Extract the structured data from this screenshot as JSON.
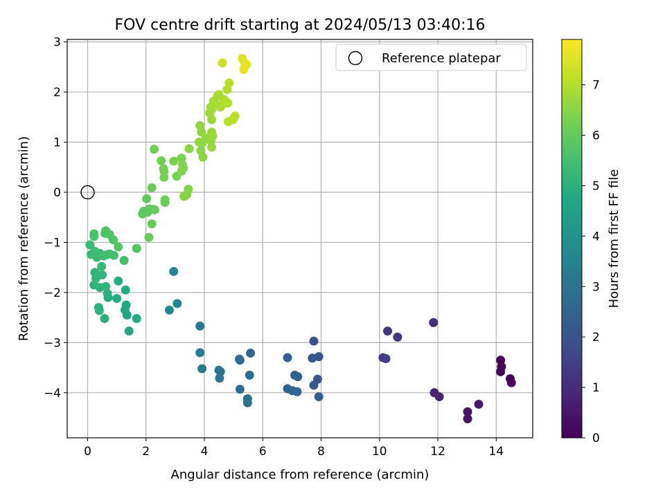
{
  "chart_data": {
    "type": "scatter",
    "title": "FOV centre drift starting at 2024/05/13 03:40:16",
    "xlabel": "Angular distance from reference (arcmin)",
    "ylabel": "Rotation from reference (arcmin)",
    "colorbar_label": "Hours from first FF file",
    "xlim": [
      -0.7,
      15.25
    ],
    "ylim": [
      -4.9,
      3.05
    ],
    "clim": [
      0,
      7.9
    ],
    "xticks": [
      0,
      2,
      4,
      6,
      8,
      10,
      12,
      14
    ],
    "yticks": [
      -4,
      -3,
      -2,
      -1,
      0,
      1,
      2,
      3
    ],
    "cticks": [
      0,
      1,
      2,
      3,
      4,
      5,
      6,
      7
    ],
    "grid": true,
    "colormap": "viridis",
    "legend": {
      "position": "top-right",
      "entries": [
        {
          "label": "Reference platepar",
          "marker": "open-circle"
        }
      ]
    },
    "reference_point": {
      "x": 0,
      "y": 0
    },
    "series": [
      {
        "points": [
          {
            "x": 14.15,
            "y": -3.35,
            "c": 0.05
          },
          {
            "x": 14.18,
            "y": -3.48,
            "c": 0.08
          },
          {
            "x": 14.15,
            "y": -3.58,
            "c": 0.1
          },
          {
            "x": 14.48,
            "y": -3.72,
            "c": 0.13
          },
          {
            "x": 14.52,
            "y": -3.8,
            "c": 0.16
          },
          {
            "x": 13.02,
            "y": -4.38,
            "c": 0.4
          },
          {
            "x": 13.02,
            "y": -4.52,
            "c": 0.45
          },
          {
            "x": 13.4,
            "y": -4.23,
            "c": 0.55
          },
          {
            "x": 11.88,
            "y": -4.0,
            "c": 0.75
          },
          {
            "x": 12.05,
            "y": -4.08,
            "c": 0.8
          },
          {
            "x": 11.85,
            "y": -2.6,
            "c": 1.0
          },
          {
            "x": 10.28,
            "y": -2.77,
            "c": 1.2
          },
          {
            "x": 10.62,
            "y": -2.89,
            "c": 1.3
          },
          {
            "x": 10.12,
            "y": -3.3,
            "c": 1.4
          },
          {
            "x": 10.22,
            "y": -3.32,
            "c": 1.45
          },
          {
            "x": 7.92,
            "y": -3.28,
            "c": 2.0
          },
          {
            "x": 7.75,
            "y": -2.97,
            "c": 2.05
          },
          {
            "x": 7.7,
            "y": -3.31,
            "c": 2.1
          },
          {
            "x": 7.88,
            "y": -3.73,
            "c": 2.15
          },
          {
            "x": 7.75,
            "y": -3.85,
            "c": 2.2
          },
          {
            "x": 7.92,
            "y": -4.08,
            "c": 2.25
          },
          {
            "x": 6.85,
            "y": -3.3,
            "c": 2.35
          },
          {
            "x": 7.1,
            "y": -3.65,
            "c": 2.4
          },
          {
            "x": 7.2,
            "y": -3.68,
            "c": 2.45
          },
          {
            "x": 6.85,
            "y": -3.92,
            "c": 2.5
          },
          {
            "x": 7.02,
            "y": -3.96,
            "c": 2.55
          },
          {
            "x": 7.18,
            "y": -3.98,
            "c": 2.6
          },
          {
            "x": 5.58,
            "y": -3.21,
            "c": 2.7
          },
          {
            "x": 5.22,
            "y": -3.35,
            "c": 2.75
          },
          {
            "x": 5.2,
            "y": -3.33,
            "c": 2.78
          },
          {
            "x": 5.55,
            "y": -3.65,
            "c": 2.8
          },
          {
            "x": 5.22,
            "y": -3.93,
            "c": 2.85
          },
          {
            "x": 5.48,
            "y": -4.12,
            "c": 2.9
          },
          {
            "x": 5.48,
            "y": -4.2,
            "c": 2.95
          },
          {
            "x": 4.5,
            "y": -3.55,
            "c": 3.05
          },
          {
            "x": 4.55,
            "y": -3.58,
            "c": 3.08
          },
          {
            "x": 4.52,
            "y": -3.71,
            "c": 3.1
          },
          {
            "x": 3.85,
            "y": -2.67,
            "c": 3.2
          },
          {
            "x": 3.85,
            "y": -3.2,
            "c": 3.25
          },
          {
            "x": 3.92,
            "y": -3.52,
            "c": 3.3
          },
          {
            "x": 2.95,
            "y": -1.58,
            "c": 3.55
          },
          {
            "x": 3.07,
            "y": -2.22,
            "c": 3.6
          },
          {
            "x": 2.8,
            "y": -2.35,
            "c": 3.65
          },
          {
            "x": 1.42,
            "y": -2.77,
            "c": 4.6
          },
          {
            "x": 1.35,
            "y": -2.45,
            "c": 4.65
          },
          {
            "x": 1.28,
            "y": -2.35,
            "c": 4.7
          },
          {
            "x": 1.32,
            "y": -2.25,
            "c": 4.72
          },
          {
            "x": 1.68,
            "y": -2.52,
            "c": 4.75
          },
          {
            "x": 1.3,
            "y": -1.95,
            "c": 4.8
          },
          {
            "x": 1.05,
            "y": -1.77,
            "c": 4.85
          },
          {
            "x": 1.0,
            "y": -2.12,
            "c": 4.9
          },
          {
            "x": 0.7,
            "y": -2.1,
            "c": 4.92
          },
          {
            "x": 0.68,
            "y": -2.02,
            "c": 4.95
          },
          {
            "x": 0.58,
            "y": -2.52,
            "c": 5.0
          },
          {
            "x": 0.38,
            "y": -2.3,
            "c": 5.02
          },
          {
            "x": 0.4,
            "y": -2.36,
            "c": 5.05
          },
          {
            "x": 0.62,
            "y": -1.88,
            "c": 5.08
          },
          {
            "x": 0.42,
            "y": -1.9,
            "c": 5.1
          },
          {
            "x": 0.22,
            "y": -1.85,
            "c": 5.12
          },
          {
            "x": 0.25,
            "y": -1.6,
            "c": 5.15
          },
          {
            "x": 0.28,
            "y": -1.72,
            "c": 5.18
          },
          {
            "x": 0.5,
            "y": -1.65,
            "c": 5.2
          },
          {
            "x": 0.48,
            "y": -1.48,
            "c": 5.25
          },
          {
            "x": 0.32,
            "y": -1.3,
            "c": 5.3
          },
          {
            "x": 0.12,
            "y": -1.24,
            "c": 5.32
          },
          {
            "x": 0.08,
            "y": -1.05,
            "c": 5.35
          },
          {
            "x": 0.25,
            "y": -1.18,
            "c": 5.38
          },
          {
            "x": 0.42,
            "y": -1.22,
            "c": 5.4
          },
          {
            "x": 0.55,
            "y": -1.27,
            "c": 5.42
          },
          {
            "x": 0.65,
            "y": -1.25,
            "c": 5.45
          },
          {
            "x": 0.75,
            "y": -1.23,
            "c": 5.48
          },
          {
            "x": 0.9,
            "y": -1.26,
            "c": 5.5
          },
          {
            "x": 1.25,
            "y": -1.36,
            "c": 5.55
          },
          {
            "x": 0.22,
            "y": -0.88,
            "c": 5.6
          },
          {
            "x": 0.22,
            "y": -0.83,
            "c": 5.62
          },
          {
            "x": 0.6,
            "y": -0.82,
            "c": 5.65
          },
          {
            "x": 0.62,
            "y": -0.77,
            "c": 5.68
          },
          {
            "x": 0.75,
            "y": -0.84,
            "c": 5.7
          },
          {
            "x": 0.88,
            "y": -0.95,
            "c": 5.72
          },
          {
            "x": 1.05,
            "y": -1.09,
            "c": 5.75
          },
          {
            "x": 1.68,
            "y": -1.12,
            "c": 5.8
          },
          {
            "x": 1.88,
            "y": -0.43,
            "c": 5.9
          },
          {
            "x": 1.92,
            "y": -0.38,
            "c": 5.92
          },
          {
            "x": 2.05,
            "y": -0.4,
            "c": 5.94
          },
          {
            "x": 2.12,
            "y": -0.33,
            "c": 5.96
          },
          {
            "x": 2.22,
            "y": -0.34,
            "c": 5.98
          },
          {
            "x": 2.3,
            "y": -0.35,
            "c": 6.0
          },
          {
            "x": 2.02,
            "y": -0.13,
            "c": 6.02
          },
          {
            "x": 2.2,
            "y": -0.63,
            "c": 6.04
          },
          {
            "x": 2.1,
            "y": -0.9,
            "c": 6.06
          },
          {
            "x": 2.2,
            "y": 0.09,
            "c": 6.1
          },
          {
            "x": 2.65,
            "y": -0.15,
            "c": 6.12
          },
          {
            "x": 2.65,
            "y": -0.2,
            "c": 6.14
          },
          {
            "x": 2.28,
            "y": 0.86,
            "c": 6.2
          },
          {
            "x": 2.52,
            "y": 0.63,
            "c": 6.22
          },
          {
            "x": 2.6,
            "y": 0.47,
            "c": 6.24
          },
          {
            "x": 2.62,
            "y": 0.42,
            "c": 6.26
          },
          {
            "x": 2.62,
            "y": 0.3,
            "c": 6.28
          },
          {
            "x": 2.95,
            "y": 0.62,
            "c": 6.3
          },
          {
            "x": 3.05,
            "y": 0.32,
            "c": 6.32
          },
          {
            "x": 3.22,
            "y": 0.68,
            "c": 6.34
          },
          {
            "x": 3.25,
            "y": 0.55,
            "c": 6.36
          },
          {
            "x": 3.28,
            "y": 0.48,
            "c": 6.38
          },
          {
            "x": 3.22,
            "y": 0.42,
            "c": 6.4
          },
          {
            "x": 3.45,
            "y": 0.06,
            "c": 6.42
          },
          {
            "x": 3.4,
            "y": -0.04,
            "c": 6.44
          },
          {
            "x": 3.3,
            "y": -0.08,
            "c": 6.46
          },
          {
            "x": 3.35,
            "y": -0.07,
            "c": 6.48
          },
          {
            "x": 3.48,
            "y": 0.87,
            "c": 6.5
          },
          {
            "x": 3.88,
            "y": 0.83,
            "c": 6.52
          },
          {
            "x": 3.95,
            "y": 0.7,
            "c": 6.54
          },
          {
            "x": 3.85,
            "y": 1.33,
            "c": 6.56
          },
          {
            "x": 3.9,
            "y": 1.2,
            "c": 6.58
          },
          {
            "x": 3.82,
            "y": 1.0,
            "c": 6.6
          },
          {
            "x": 3.92,
            "y": 0.98,
            "c": 6.62
          },
          {
            "x": 4.05,
            "y": 1.08,
            "c": 6.64
          },
          {
            "x": 4.22,
            "y": 1.02,
            "c": 6.66
          },
          {
            "x": 4.25,
            "y": 0.9,
            "c": 6.68
          },
          {
            "x": 4.28,
            "y": 1.12,
            "c": 6.7
          },
          {
            "x": 4.25,
            "y": 1.2,
            "c": 6.72
          },
          {
            "x": 4.25,
            "y": 1.45,
            "c": 6.74
          },
          {
            "x": 4.18,
            "y": 1.58,
            "c": 6.76
          },
          {
            "x": 4.25,
            "y": 1.65,
            "c": 6.78
          },
          {
            "x": 4.22,
            "y": 1.7,
            "c": 6.8
          },
          {
            "x": 4.32,
            "y": 1.82,
            "c": 6.82
          },
          {
            "x": 4.35,
            "y": 1.78,
            "c": 6.84
          },
          {
            "x": 4.45,
            "y": 1.92,
            "c": 6.86
          },
          {
            "x": 4.5,
            "y": 1.95,
            "c": 6.88
          },
          {
            "x": 4.55,
            "y": 1.7,
            "c": 6.9
          },
          {
            "x": 4.6,
            "y": 1.75,
            "c": 6.92
          },
          {
            "x": 4.68,
            "y": 1.85,
            "c": 6.94
          },
          {
            "x": 4.72,
            "y": 1.8,
            "c": 6.96
          },
          {
            "x": 4.8,
            "y": 1.78,
            "c": 6.98
          },
          {
            "x": 4.85,
            "y": 2.18,
            "c": 7.0
          },
          {
            "x": 4.78,
            "y": 2.05,
            "c": 7.02
          },
          {
            "x": 4.82,
            "y": 1.41,
            "c": 7.04
          },
          {
            "x": 4.98,
            "y": 1.45,
            "c": 7.06
          },
          {
            "x": 5.05,
            "y": 1.52,
            "c": 7.08
          },
          {
            "x": 4.62,
            "y": 2.58,
            "c": 7.3
          },
          {
            "x": 5.3,
            "y": 2.67,
            "c": 7.5
          },
          {
            "x": 5.38,
            "y": 2.58,
            "c": 7.55
          },
          {
            "x": 5.45,
            "y": 2.55,
            "c": 7.6
          },
          {
            "x": 5.35,
            "y": 2.45,
            "c": 7.65
          }
        ]
      }
    ]
  }
}
